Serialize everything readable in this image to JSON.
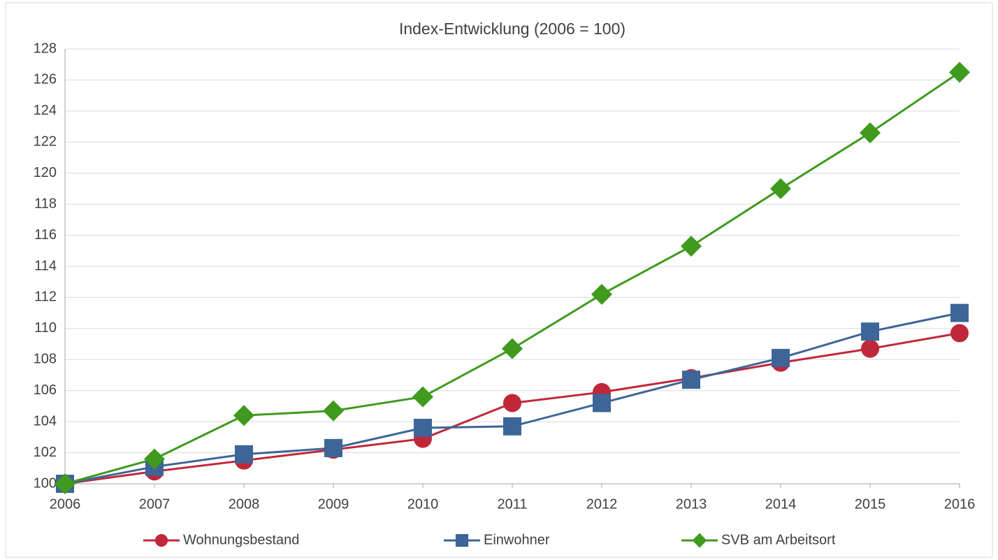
{
  "chart_data": {
    "type": "line",
    "title": "Index-Entwicklung (2006 = 100)",
    "x": [
      2006,
      2007,
      2008,
      2009,
      2010,
      2011,
      2012,
      2013,
      2014,
      2015,
      2016
    ],
    "xlim": [
      2006,
      2016
    ],
    "xticks": [
      2006,
      2007,
      2008,
      2009,
      2010,
      2011,
      2012,
      2013,
      2014,
      2015,
      2016
    ],
    "ylim": [
      100,
      128
    ],
    "yticks": [
      100,
      102,
      104,
      106,
      108,
      110,
      112,
      114,
      116,
      118,
      120,
      122,
      124,
      126,
      128
    ],
    "grid": true,
    "legend": "bottom",
    "series": [
      {
        "name": "Wohnungsbestand",
        "color": "#c0283a",
        "marker": "circle",
        "values": [
          100,
          100.8,
          101.5,
          102.2,
          102.9,
          105.2,
          105.9,
          106.8,
          107.8,
          108.7,
          109.7
        ]
      },
      {
        "name": "Einwohner",
        "color": "#3d6597",
        "marker": "square",
        "values": [
          100,
          101.1,
          101.9,
          102.3,
          103.6,
          103.7,
          105.2,
          106.7,
          108.1,
          109.8,
          111.0
        ]
      },
      {
        "name": "SVB am Arbeitsort",
        "color": "#3f9a1e",
        "marker": "diamond",
        "values": [
          100,
          101.6,
          104.4,
          104.7,
          105.6,
          108.7,
          112.2,
          115.3,
          119.0,
          122.6,
          126.5
        ]
      }
    ]
  }
}
